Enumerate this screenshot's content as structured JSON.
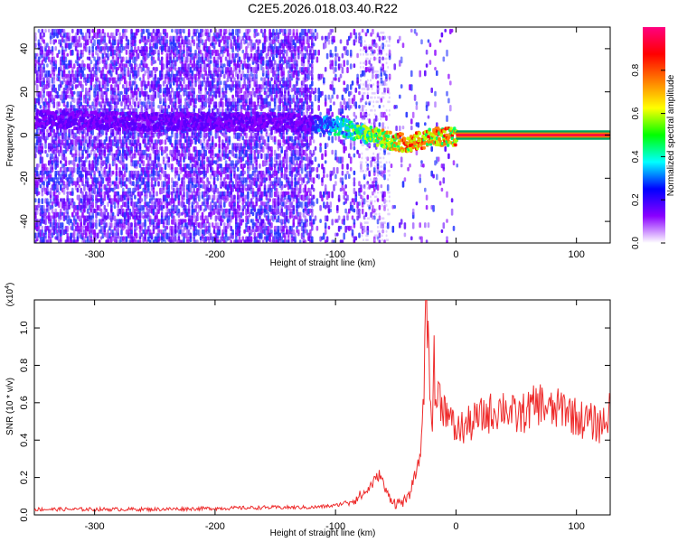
{
  "title": "C2E5.2026.018.03.40.R22",
  "chart_data": [
    {
      "type": "heatmap",
      "xlabel": "Height of straight line (km)",
      "ylabel": "Frequency (Hz)",
      "xlim": [
        -350,
        128
      ],
      "ylim": [
        -50,
        50
      ],
      "xticks": [
        -300,
        -200,
        -100,
        0,
        100
      ],
      "yticks": [
        -40,
        -20,
        0,
        20,
        40
      ],
      "colorbar": {
        "label": "Normalized spectral amplitude",
        "range": [
          0,
          1
        ],
        "ticks": [
          "0.0",
          "0.2",
          "0.4",
          "0.6",
          "0.8"
        ],
        "colors": [
          "#ffffff",
          "#8a00ff",
          "#0000ff",
          "#00ffff",
          "#00ff00",
          "#ffff00",
          "#ff7f00",
          "#ff0000",
          "#ff0080"
        ]
      },
      "ridge": {
        "description_points_x": [
          -350,
          -250,
          -150,
          -100,
          -75,
          -55,
          -40,
          -20,
          0,
          128
        ],
        "description_points_y": [
          8,
          7,
          7,
          5,
          1,
          -2,
          -3,
          0,
          0,
          0
        ]
      },
      "bright_segments_x": [
        [
          -120,
          -40
        ],
        [
          -40,
          0
        ],
        [
          0,
          128
        ]
      ]
    },
    {
      "type": "line",
      "xlabel": "Height of straight line (km)",
      "ylabel": "SNR (10 * v/v)",
      "y_multiplier": "(x10^4)",
      "xlim": [
        -350,
        128
      ],
      "ylim": [
        0,
        1.15
      ],
      "xticks": [
        -300,
        -200,
        -100,
        0,
        100
      ],
      "yticks": [
        "0.0",
        "0.2",
        "0.4",
        "0.6",
        "0.8",
        "1.0"
      ],
      "series": [
        {
          "color": "#ee2b2b",
          "x": [
            -350,
            -300,
            -250,
            -200,
            -150,
            -120,
            -100,
            -85,
            -75,
            -68,
            -63,
            -58,
            -50,
            -40,
            -30,
            -27,
            -25,
            -20,
            -15,
            -10,
            -5,
            0,
            10,
            20,
            30,
            40,
            50,
            60,
            70,
            80,
            90,
            100,
            110,
            120,
            128
          ],
          "values": [
            0.03,
            0.03,
            0.03,
            0.035,
            0.04,
            0.04,
            0.05,
            0.08,
            0.12,
            0.18,
            0.22,
            0.12,
            0.06,
            0.08,
            0.3,
            0.6,
            1.15,
            0.55,
            0.65,
            0.58,
            0.5,
            0.45,
            0.48,
            0.52,
            0.55,
            0.58,
            0.52,
            0.56,
            0.6,
            0.55,
            0.58,
            0.52,
            0.5,
            0.48,
            0.55
          ],
          "spikes": [
            [
              -25,
              1.15
            ],
            [
              -18,
              0.96
            ],
            [
              -22,
              0.62
            ],
            [
              -8,
              0.6
            ]
          ]
        }
      ]
    }
  ]
}
